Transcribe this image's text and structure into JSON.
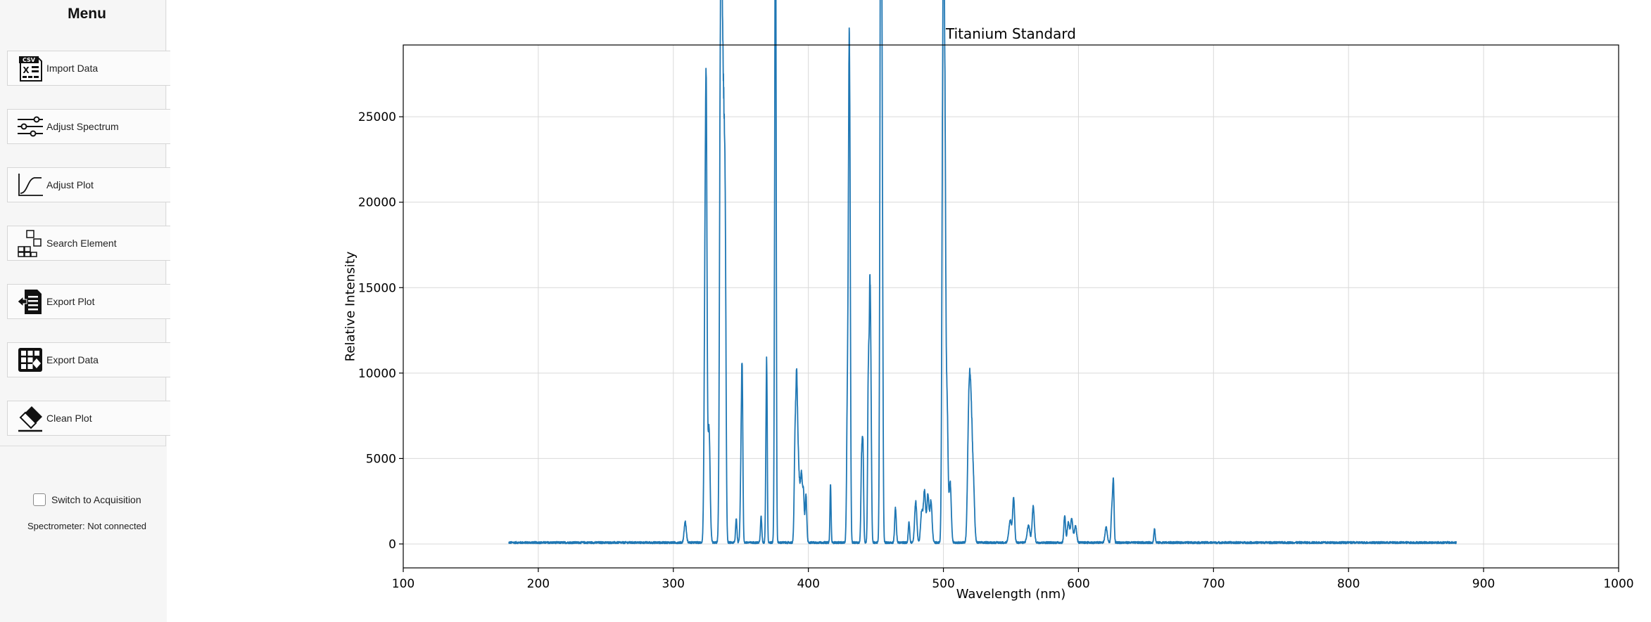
{
  "sidebar": {
    "title": "Menu",
    "buttons": [
      {
        "label": "Import Data",
        "icon": "csv-file-icon"
      },
      {
        "label": "Adjust Spectrum",
        "icon": "sliders-icon"
      },
      {
        "label": "Adjust Plot",
        "icon": "curve-icon"
      },
      {
        "label": "Search Element",
        "icon": "periodic-elements-icon"
      },
      {
        "label": "Export Plot",
        "icon": "export-document-icon"
      },
      {
        "label": "Export Data",
        "icon": "export-table-icon"
      },
      {
        "label": "Clean Plot",
        "icon": "eraser-icon"
      }
    ],
    "acquisition": {
      "label": "Switch to Acquisition",
      "checked": false
    },
    "status": "Spectrometer: Not connected"
  },
  "chart_data": {
    "type": "line",
    "title": "Titanium Standard",
    "xlabel": "Wavelength (nm)",
    "ylabel": "Relative Intensity",
    "xlim": [
      100,
      1000
    ],
    "ylim": [
      -1400,
      29200
    ],
    "xticks": [
      100,
      200,
      300,
      400,
      500,
      600,
      700,
      800,
      900,
      1000
    ],
    "yticks": [
      0,
      5000,
      10000,
      15000,
      20000,
      25000
    ],
    "grid": true,
    "color": "#1f77b4",
    "series": [
      {
        "x_range": [
          178,
          880
        ],
        "baseline": 80,
        "peaks": [
          [
            308.8,
            1200,
            0.8
          ],
          [
            323.5,
            13500,
            0.7
          ],
          [
            324.4,
            20500,
            0.6
          ],
          [
            326.4,
            6800,
            0.8
          ],
          [
            334.9,
            26500,
            0.7
          ],
          [
            336.1,
            24000,
            0.7
          ],
          [
            337.4,
            19000,
            0.7
          ],
          [
            338.5,
            14000,
            0.6
          ],
          [
            346.6,
            1400,
            0.5
          ],
          [
            350.2,
            4500,
            0.6
          ],
          [
            351.0,
            8500,
            0.5
          ],
          [
            365.0,
            1500,
            0.5
          ],
          [
            368.6,
            4000,
            0.4
          ],
          [
            369.2,
            9200,
            0.4
          ],
          [
            375.3,
            19000,
            0.5
          ],
          [
            375.8,
            26500,
            0.45
          ],
          [
            390.1,
            5500,
            0.6
          ],
          [
            391.3,
            8800,
            0.6
          ],
          [
            392.5,
            4200,
            0.6
          ],
          [
            393.7,
            2500,
            0.6
          ],
          [
            394.9,
            3600,
            0.6
          ],
          [
            396.3,
            3000,
            0.6
          ],
          [
            398.2,
            2800,
            0.6
          ],
          [
            416.4,
            3400,
            0.4
          ],
          [
            429.0,
            9000,
            0.6
          ],
          [
            430.1,
            21800,
            0.5
          ],
          [
            430.8,
            15000,
            0.5
          ],
          [
            439.4,
            4500,
            0.5
          ],
          [
            440.4,
            5500,
            0.5
          ],
          [
            444.4,
            9500,
            0.5
          ],
          [
            445.5,
            12500,
            0.5
          ],
          [
            446.3,
            7500,
            0.5
          ],
          [
            453.1,
            12000,
            0.5
          ],
          [
            453.6,
            20000,
            0.5
          ],
          [
            454.0,
            24800,
            0.5
          ],
          [
            454.8,
            15000,
            0.5
          ],
          [
            464.5,
            2000,
            0.6
          ],
          [
            474.5,
            1200,
            0.5
          ],
          [
            479.5,
            2400,
            0.8
          ],
          [
            483.9,
            1800,
            0.8
          ],
          [
            486.0,
            3000,
            0.8
          ],
          [
            488.5,
            2800,
            0.8
          ],
          [
            490.8,
            2400,
            0.8
          ],
          [
            499.3,
            17000,
            0.6
          ],
          [
            500.2,
            25500,
            0.6
          ],
          [
            501.2,
            19000,
            0.6
          ],
          [
            502.7,
            8000,
            0.7
          ],
          [
            505.0,
            3500,
            0.8
          ],
          [
            518.4,
            4500,
            0.8
          ],
          [
            519.5,
            6800,
            0.8
          ],
          [
            520.8,
            5500,
            0.8
          ],
          [
            522.3,
            3000,
            0.8
          ],
          [
            549.5,
            1300,
            1.0
          ],
          [
            552.0,
            2600,
            0.7
          ],
          [
            563.0,
            1000,
            1.0
          ],
          [
            566.5,
            2100,
            0.8
          ],
          [
            589.8,
            1600,
            0.6
          ],
          [
            592.5,
            1200,
            0.8
          ],
          [
            595.0,
            1400,
            0.8
          ],
          [
            597.8,
            1000,
            0.8
          ],
          [
            620.5,
            900,
            0.8
          ],
          [
            624.8,
            2000,
            0.6
          ],
          [
            625.9,
            3300,
            0.5
          ],
          [
            656.3,
            800,
            0.5
          ]
        ]
      }
    ]
  }
}
